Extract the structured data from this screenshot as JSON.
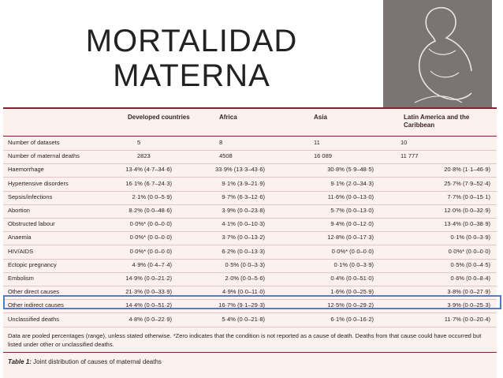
{
  "slide": {
    "title_line1": "MORTALIDAD",
    "title_line2": "MATERNA"
  },
  "table": {
    "columns": [
      "",
      "Developed countries",
      "Africa",
      "Asia",
      "Latin America and the Caribbean"
    ],
    "count_rows": [
      {
        "label": "Number of datasets",
        "values": [
          "5",
          "8",
          "11",
          "10"
        ]
      },
      {
        "label": "Number of maternal deaths",
        "values": [
          "2823",
          "4508",
          "16 089",
          "11 777"
        ]
      }
    ],
    "cause_rows": [
      {
        "label": "Haemorrhage",
        "values": [
          "13·4% (4·7–34·6)",
          "33·9% (13·3–43·6)",
          "30·8% (5·9–48·5)",
          "20·8% (1·1–46·9)"
        ]
      },
      {
        "label": "Hypertensive disorders",
        "values": [
          "16·1% (6·7–24·3)",
          "9·1% (3·9–21·9)",
          "9·1% (2·0–34·3)",
          "25·7% (7·9–52·4)"
        ]
      },
      {
        "label": "Sepsis/infections",
        "values": [
          "2·1% (0·0–5·9)",
          "9·7% (6·3–12·6)",
          "11·6% (0·0–13·0)",
          "7·7% (0·0–15·1)"
        ]
      },
      {
        "label": "Abortion",
        "values": [
          "8·2% (0·0–48·6)",
          "3·9% (0·0–23·8)",
          "5·7% (0·0–13·0)",
          "12·0% (0·0–32·9)"
        ]
      },
      {
        "label": "Obstructed labour",
        "values": [
          "0·0%* (0·0–0·0)",
          "4·1% (0·0–10·3)",
          "9·4% (0·0–12·0)",
          "13·4% (0·0–38·9)"
        ]
      },
      {
        "label": "Anaemia",
        "values": [
          "0·0%* (0·0–0·0)",
          "3·7% (0·0–13·2)",
          "12·8% (0·0–17·3)",
          "0·1% (0·0–3·9)"
        ]
      },
      {
        "label": "HIV/AIDS",
        "values": [
          "0·0%* (0·0–0·0)",
          "6·2% (0·0–13·3)",
          "0·0%* (0·0–0·0)",
          "0·0%* (0·0–0·0)"
        ]
      },
      {
        "label": "Ectopic pregnancy",
        "values": [
          "4·9% (0·4–7·4)",
          "0·5% (0·0–3·3)",
          "0·1% (0·0–3·9)",
          "0·5% (0·0–4·5)"
        ]
      },
      {
        "label": "Embolism",
        "values": [
          "14·9% (0·0–21·2)",
          "2·0% (0·0–5·6)",
          "0·4% (0·0–51·0)",
          "0·6% (0·0–8·4)"
        ]
      },
      {
        "label": "Other direct causes",
        "values": [
          "21·3% (0·0–33·9)",
          "4·9% (0·0–11·0)",
          "1·6% (0·0–25·9)",
          "3·8% (0·0–27·9)"
        ]
      },
      {
        "label": "Other indirect causes",
        "values": [
          "14·4% (0·0–51·2)",
          "16·7% (9·1–29·3)",
          "12·5% (0·0–29·2)",
          "3·9% (0·0–25·3)"
        ]
      },
      {
        "label": "Unclassified deaths",
        "values": [
          "4·8% (0·0–22·9)",
          "5·4% (0·0–21·8)",
          "6·1% (0·0–16·2)",
          "11·7% (0·0–20·4)"
        ]
      }
    ],
    "highlighted_row": "Sepsis/infections",
    "footnote": "Data are pooled percentages (range), unless stated otherwise. *Zero indicates that the condition is not reported as a cause of death. Deaths from that cause could have occurred but listed under other or unclassified deaths.",
    "caption_label": "Table 1:",
    "caption_text": " Joint distribution of causes of maternal deaths"
  },
  "colors": {
    "table_background": "#fbf1ef",
    "rule": "#7b2630",
    "highlight_border": "#4f7ec7",
    "photo_background": "#7b7474"
  },
  "icons": {
    "photo": "pregnant-woman-silhouette"
  }
}
